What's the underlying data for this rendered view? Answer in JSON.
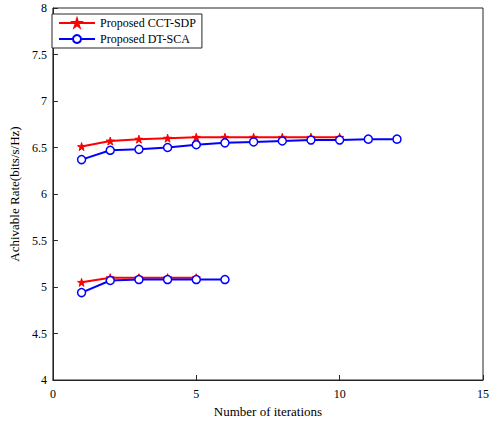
{
  "chart_data": {
    "type": "line",
    "x_label": "Number of iterations",
    "y_label": "Achivable Rate(bits/s/Hz)",
    "xlim": [
      0,
      15
    ],
    "xticks": [
      0,
      5,
      10,
      15
    ],
    "ylim": [
      4,
      8
    ],
    "yticks": [
      4,
      4.5,
      5,
      5.5,
      6,
      6.5,
      7,
      7.5,
      8
    ],
    "grid": false,
    "legend": "upper left",
    "series": [
      {
        "name": "Proposed CCT-SDP",
        "color": "#ff0000",
        "marker": "star",
        "x": [
          1,
          2,
          3,
          4,
          5,
          6,
          7,
          8,
          9,
          10
        ],
        "values": [
          6.51,
          6.57,
          6.59,
          6.6,
          6.61,
          6.61,
          6.61,
          6.61,
          6.61,
          6.61
        ]
      },
      {
        "name": "Proposed DT-SCA",
        "color": "#0000ff",
        "marker": "circle",
        "x": [
          1,
          2,
          3,
          4,
          5,
          6,
          7,
          8,
          9,
          10,
          11,
          12
        ],
        "values": [
          6.37,
          6.47,
          6.48,
          6.5,
          6.53,
          6.55,
          6.56,
          6.57,
          6.58,
          6.58,
          6.59,
          6.59
        ]
      },
      {
        "name": "Proposed CCT-SDP",
        "color": "#ff0000",
        "marker": "star",
        "x": [
          1,
          2,
          3,
          4,
          5
        ],
        "values": [
          5.05,
          5.1,
          5.1,
          5.1,
          5.1
        ]
      },
      {
        "name": "Proposed DT-SCA",
        "color": "#0000ff",
        "marker": "circle",
        "x": [
          1,
          2,
          3,
          4,
          5,
          6
        ],
        "values": [
          4.94,
          5.07,
          5.08,
          5.08,
          5.08,
          5.08
        ]
      }
    ]
  }
}
